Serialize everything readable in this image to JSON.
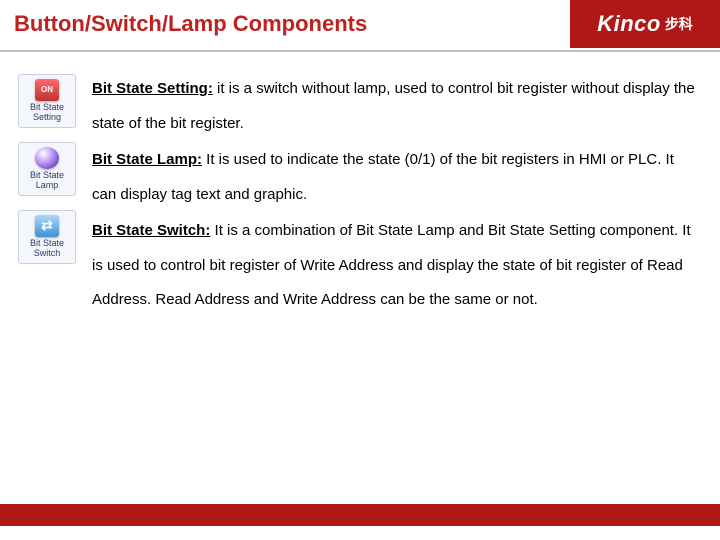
{
  "header": {
    "title": "Button/Switch/Lamp Components",
    "brand": "Kinco",
    "brand_cn": "步科"
  },
  "icons": [
    {
      "label": "Bit State Setting",
      "glyph": "setting"
    },
    {
      "label": "Bit State Lamp",
      "glyph": "lamp"
    },
    {
      "label": "Bit State Switch",
      "glyph": "switch"
    }
  ],
  "body": {
    "para1_lead": "Bit State Setting:",
    "para1_rest": " it is a switch without lamp, used to control bit register without display the state of the bit register.",
    "para2_lead": "Bit State Lamp:",
    "para2_rest": " It is used to indicate the state (0/1) of the bit registers in HMI or PLC. It can display tag text and graphic.",
    "para3_lead": "Bit State Switch:",
    "para3_rest": " It is a combination of Bit State Lamp and Bit State Setting component. It is used to control bit register of Write Address and display the state of bit register of Read Address. Read Address and Write Address can be the same or not."
  },
  "colors": {
    "title": "#c02020",
    "brand_bg": "#b01818",
    "divider": "#bfbfbf",
    "text": "#000000",
    "icon_bg": "#f4f6fb",
    "icon_border": "#c8d0e0"
  }
}
